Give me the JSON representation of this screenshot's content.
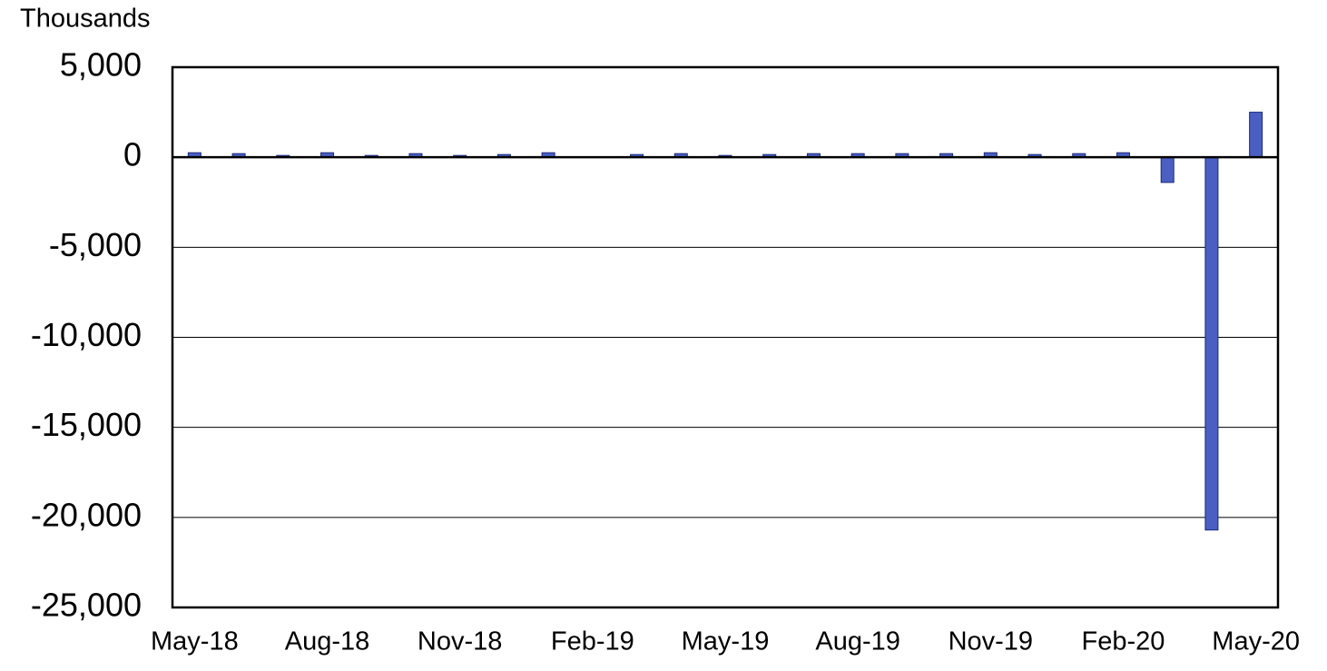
{
  "chart_data": {
    "type": "bar",
    "y_axis_label": "Thousands",
    "categories": [
      "May-18",
      null,
      null,
      "Aug-18",
      null,
      null,
      "Nov-18",
      null,
      null,
      "Feb-19",
      null,
      null,
      "May-19",
      null,
      null,
      "Aug-19",
      null,
      null,
      "Nov-19",
      null,
      null,
      "Feb-20",
      null,
      null,
      "May-20"
    ],
    "values": [
      250,
      200,
      100,
      250,
      100,
      200,
      100,
      150,
      250,
      10,
      150,
      200,
      100,
      150,
      200,
      200,
      200,
      200,
      250,
      150,
      200,
      250,
      -1400,
      -20700,
      2500
    ],
    "color": "#4a5fc1",
    "ylim": [
      -25000,
      5000
    ],
    "yticks": [
      {
        "value": -25000,
        "label": "-25,000"
      },
      {
        "value": -20000,
        "label": "-20,000"
      },
      {
        "value": -15000,
        "label": "-15,000"
      },
      {
        "value": -10000,
        "label": "-10,000"
      },
      {
        "value": -5000,
        "label": "-5,000"
      },
      0,
      {
        "value": 5000,
        "label": "5,000"
      }
    ],
    "grid": true
  }
}
